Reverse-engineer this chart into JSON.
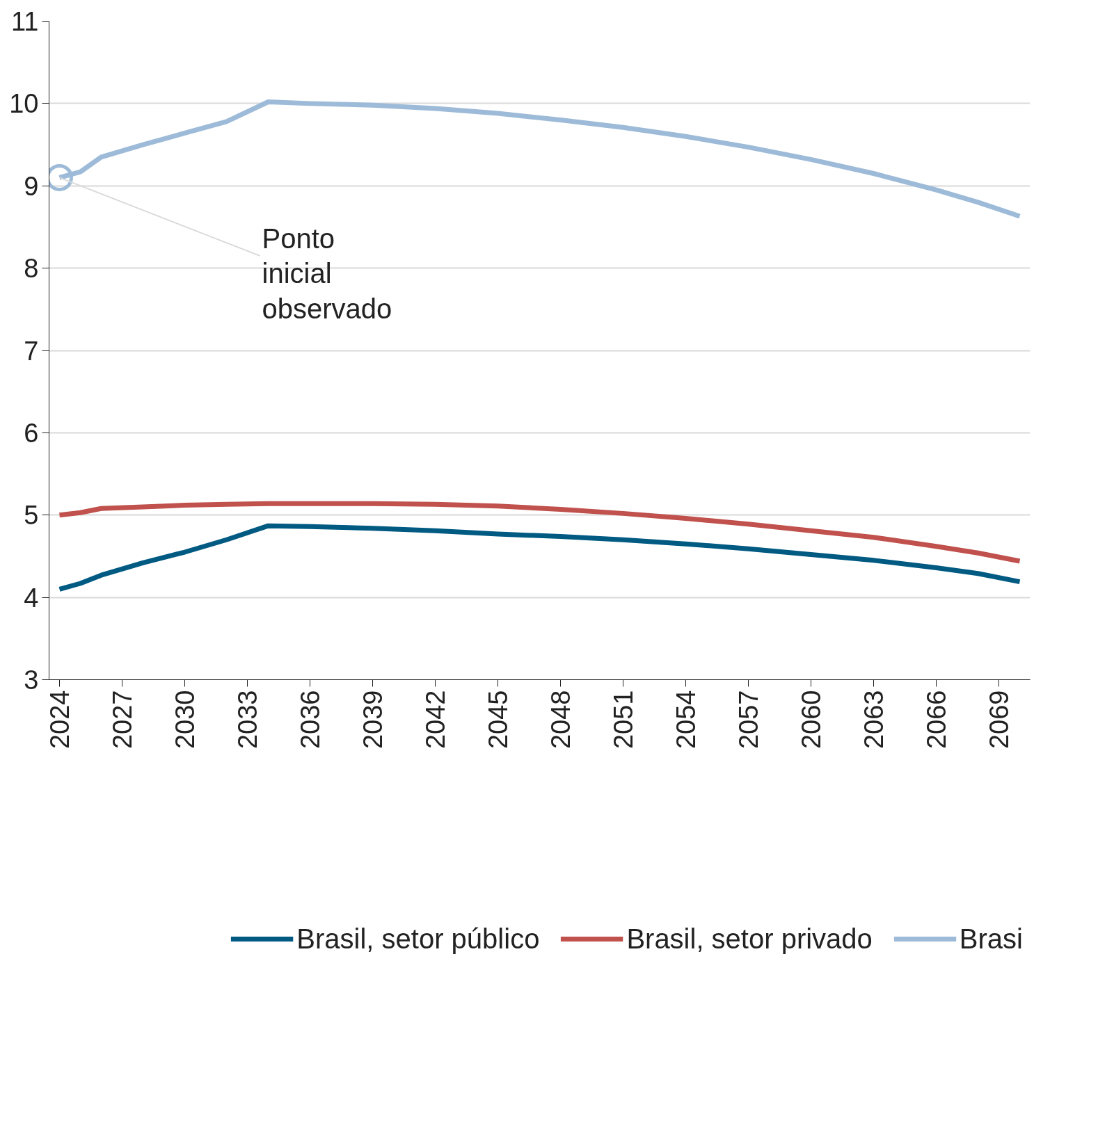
{
  "chart_data": {
    "type": "line",
    "x": [
      2024,
      2025,
      2026,
      2028,
      2030,
      2032,
      2034,
      2036,
      2039,
      2042,
      2045,
      2048,
      2051,
      2054,
      2057,
      2060,
      2063,
      2066,
      2068,
      2070
    ],
    "series": [
      {
        "name": "Brasil, setor público",
        "color": "#005a82",
        "values": [
          4.1,
          4.17,
          4.27,
          4.42,
          4.55,
          4.7,
          4.87,
          4.86,
          4.84,
          4.81,
          4.77,
          4.74,
          4.7,
          4.65,
          4.59,
          4.52,
          4.45,
          4.36,
          4.29,
          4.19
        ]
      },
      {
        "name": "Brasil, setor privado",
        "color": "#c0514d",
        "values": [
          5.0,
          5.03,
          5.08,
          5.1,
          5.12,
          5.13,
          5.14,
          5.14,
          5.14,
          5.13,
          5.11,
          5.07,
          5.02,
          4.96,
          4.89,
          4.81,
          4.73,
          4.62,
          4.54,
          4.44
        ]
      },
      {
        "name": "Brasi",
        "color": "#9dbbd8",
        "values": [
          9.1,
          9.17,
          9.35,
          9.5,
          9.64,
          9.78,
          10.02,
          10.0,
          9.98,
          9.94,
          9.88,
          9.8,
          9.71,
          9.6,
          9.47,
          9.32,
          9.15,
          8.95,
          8.8,
          8.63
        ]
      }
    ],
    "xlim": [
      2023.5,
      2070.5
    ],
    "xticks": [
      2024,
      2027,
      2030,
      2033,
      2036,
      2039,
      2042,
      2045,
      2048,
      2051,
      2054,
      2057,
      2060,
      2063,
      2066,
      2069
    ],
    "ylim": [
      3,
      11
    ],
    "yticks": [
      3,
      4,
      5,
      6,
      7,
      8,
      9,
      10,
      11
    ],
    "grid": "y",
    "legend": "bottom",
    "annotations": [
      {
        "text": "Ponto inicial observado",
        "x": 2024,
        "y": 9.1
      }
    ]
  }
}
